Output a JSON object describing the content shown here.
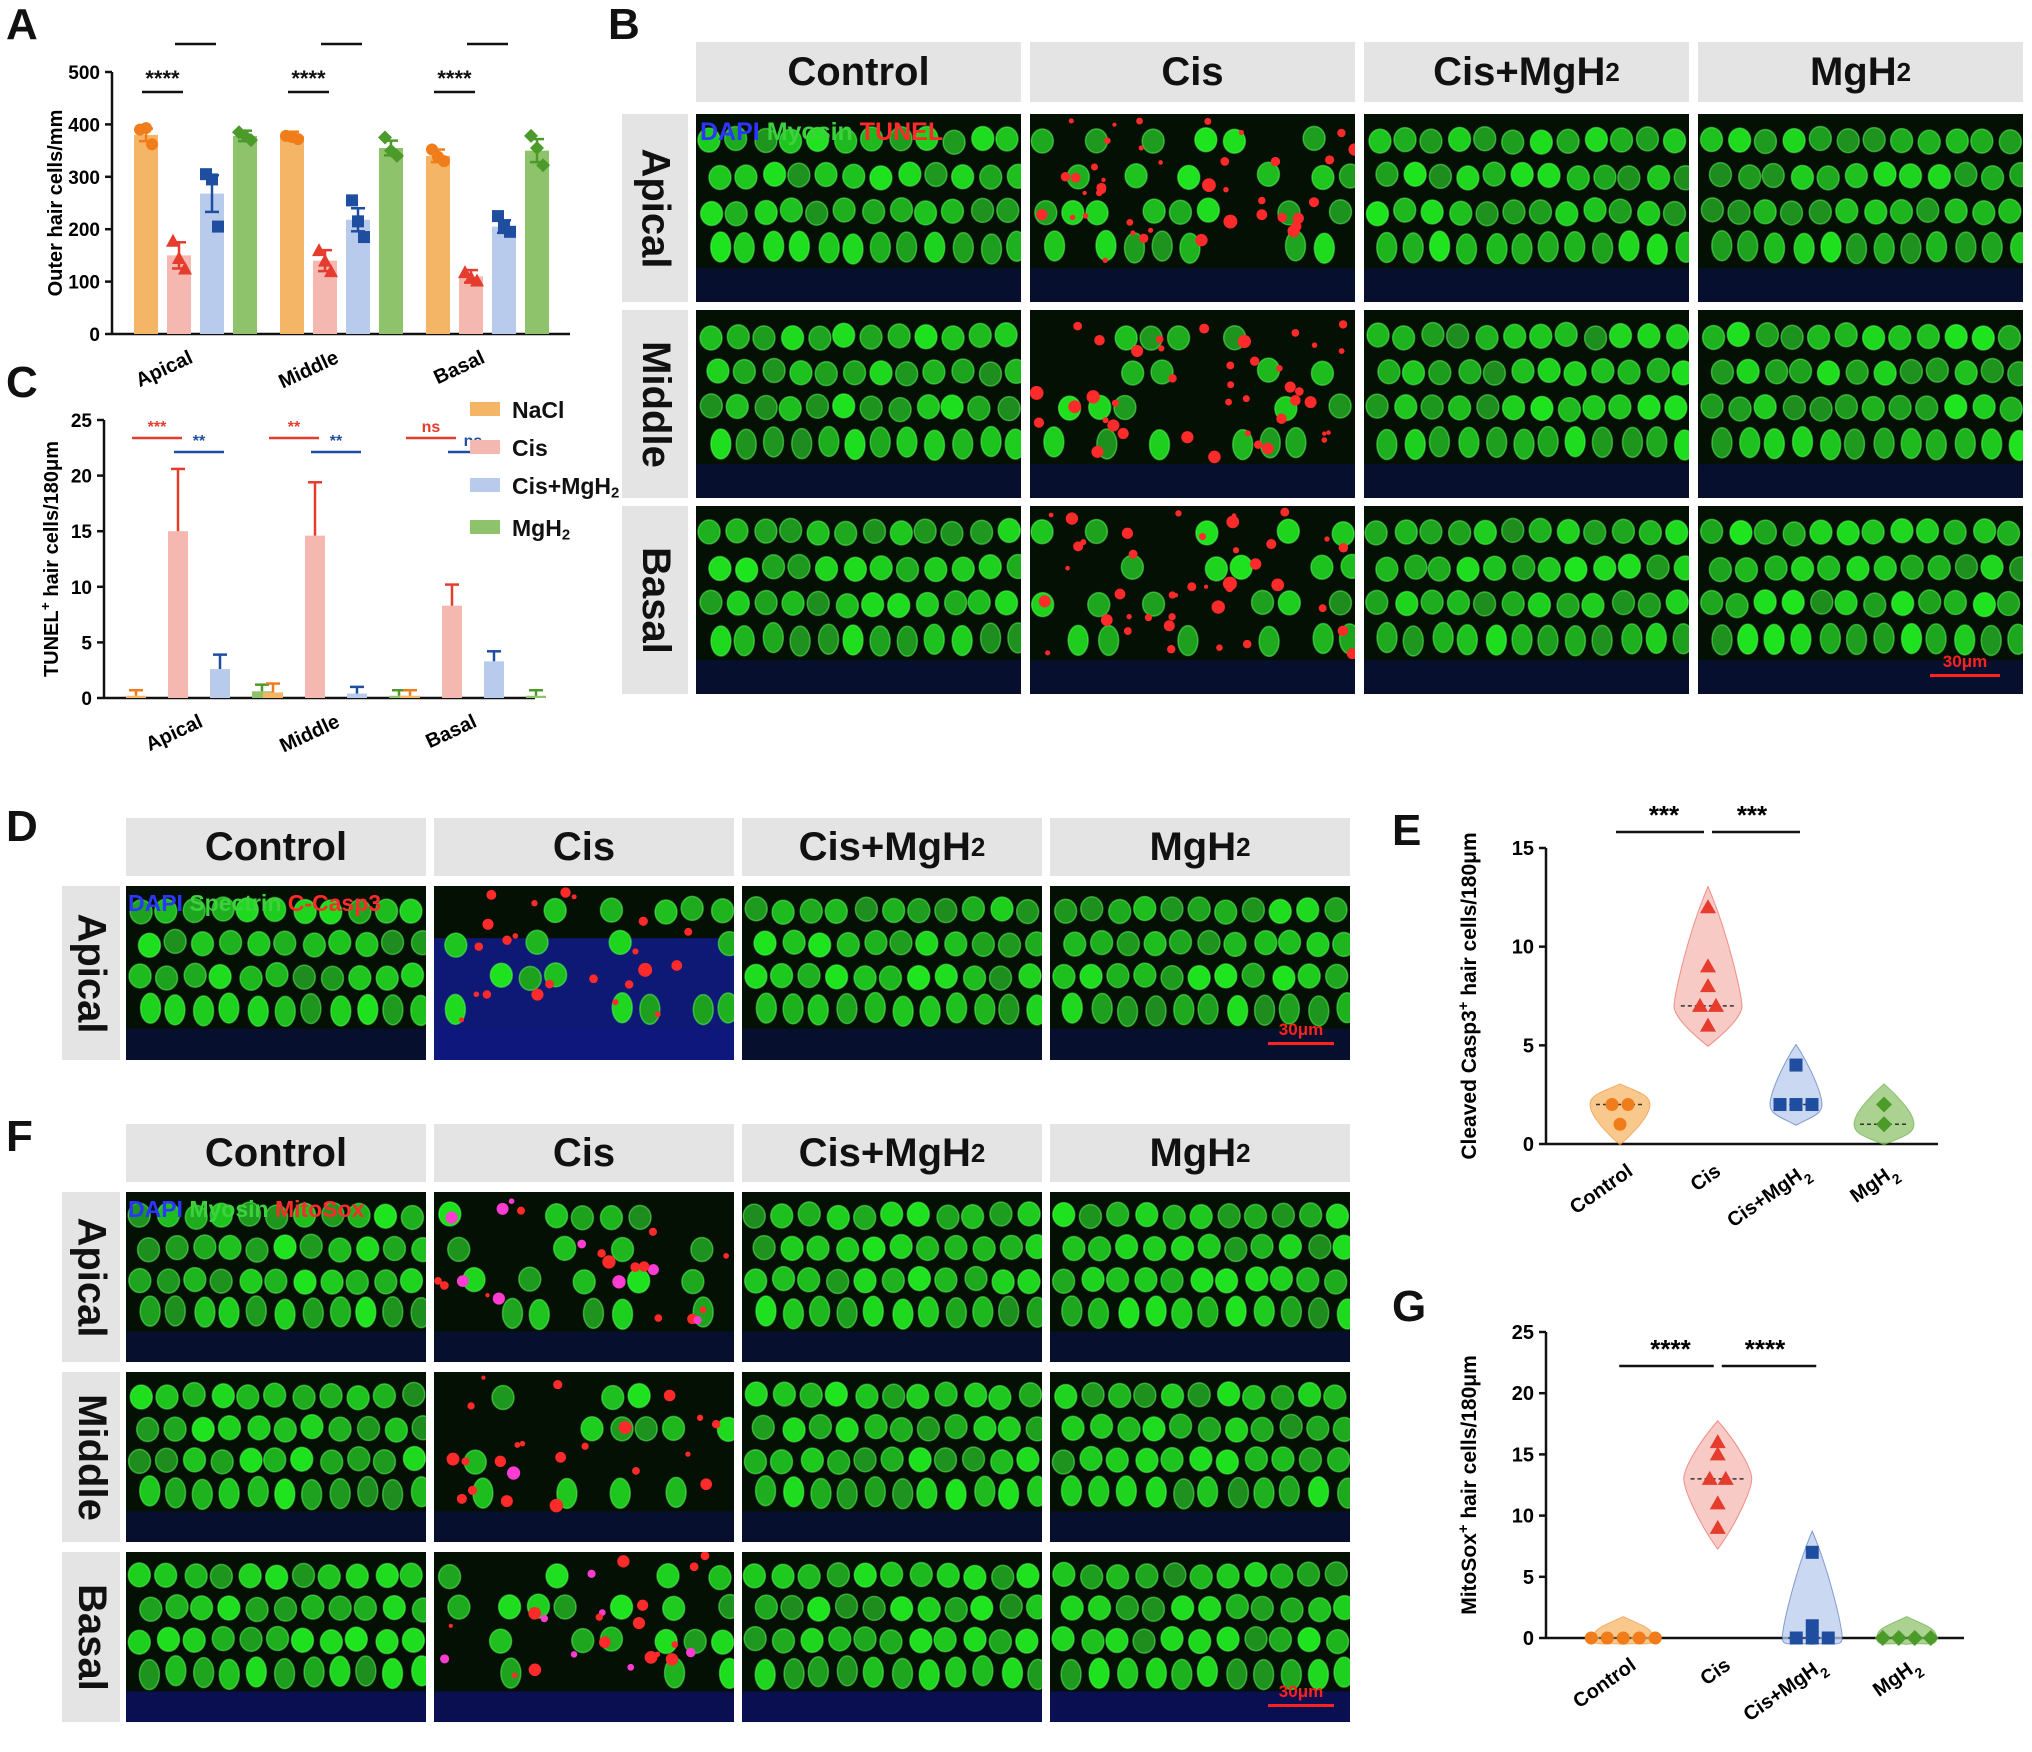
{
  "panel_letters": {
    "a": "A",
    "b": "B",
    "c": "C",
    "d": "D",
    "e": "E",
    "f": "F",
    "g": "G"
  },
  "groups": [
    "Control",
    "Cis",
    "Cis+MgH2",
    "MgH2"
  ],
  "regions": [
    "Apical",
    "Middle",
    "Basal"
  ],
  "stain_b": {
    "dapi": "DAPI",
    "marker": "Myosin",
    "signal": "TUNEL"
  },
  "stain_d": {
    "dapi": "DAPI",
    "marker": "Spectrin",
    "signal": "C-Casp3"
  },
  "stain_f": {
    "dapi": "DAPI",
    "marker": "Myosin",
    "signal": "MitoSox"
  },
  "scale_bar": "30μm",
  "legend": [
    "NaCl",
    "Cis",
    "Cis+MgH2",
    "MgH2"
  ],
  "colors": {
    "nacl": "#f5b566",
    "cis": "#f4b8b1",
    "cismgh2": "#b9cbec",
    "mgh2": "#8fc36b",
    "orange": "#f07c1a",
    "red": "#e53c2e",
    "blue": "#1f4ea1",
    "green": "#4b9a2a",
    "dapi": "#2b36ff",
    "myosin": "#3dd23d",
    "tunel": "#ff2a2a",
    "stainred": "#ff2a2a"
  },
  "chart_data": [
    {
      "panel": "A",
      "type": "bar",
      "ylabel": "Outer hair cells/mm",
      "ylim": [
        0,
        500
      ],
      "yticks": [
        "0",
        "100",
        "200",
        "300",
        "400",
        "500"
      ],
      "categories": [
        "Apical",
        "Middle",
        "Basal"
      ],
      "series": [
        {
          "name": "NaCl",
          "values": [
            380,
            378,
            340
          ],
          "err": [
            12,
            8,
            12
          ],
          "points": [
            [
              390,
              393,
              362
            ],
            [
              378,
              376,
              372
            ],
            [
              352,
              338,
              330
            ]
          ]
        },
        {
          "name": "Cis",
          "values": [
            150,
            140,
            110
          ],
          "err": [
            25,
            20,
            12
          ],
          "points": [
            [
              178,
              145,
              125
            ],
            [
              160,
              140,
              120
            ],
            [
              118,
              108,
              102
            ]
          ]
        },
        {
          "name": "Cis+MgH2",
          "values": [
            268,
            218,
            205
          ],
          "err": [
            35,
            22,
            12
          ],
          "points": [
            [
              305,
              295,
              205
            ],
            [
              255,
              215,
              185
            ],
            [
              225,
              205,
              195
            ]
          ]
        },
        {
          "name": "MgH2",
          "values": [
            378,
            355,
            350
          ],
          "err": [
            10,
            14,
            22
          ],
          "points": [
            [
              385,
              378,
              370
            ],
            [
              375,
              350,
              340
            ],
            [
              378,
              355,
              322
            ]
          ]
        }
      ],
      "significance": [
        {
          "category": "Apical",
          "pair": "NaCl-Cis",
          "label": "****"
        },
        {
          "category": "Apical",
          "pair": "Cis-Cis+MgH2",
          "label": "***"
        },
        {
          "category": "Middle",
          "pair": "NaCl-Cis",
          "label": "****"
        },
        {
          "category": "Middle",
          "pair": "Cis-Cis+MgH2",
          "label": "*"
        },
        {
          "category": "Basal",
          "pair": "NaCl-Cis",
          "label": "****"
        },
        {
          "category": "Basal",
          "pair": "Cis-Cis+MgH2",
          "label": "****"
        }
      ]
    },
    {
      "panel": "C",
      "type": "bar",
      "ylabel": "TUNEL+ hair cells/180μm",
      "ylim": [
        0,
        25
      ],
      "yticks": [
        "0",
        "5",
        "10",
        "15",
        "20",
        "25"
      ],
      "categories": [
        "Apical",
        "Middle",
        "Basal"
      ],
      "series": [
        {
          "name": "NaCl",
          "values": [
            0.2,
            0.5,
            0.2
          ],
          "err": [
            0.5,
            0.8,
            0.5
          ]
        },
        {
          "name": "Cis",
          "values": [
            15,
            14.6,
            8.3
          ],
          "err": [
            5.6,
            4.8,
            1.9
          ]
        },
        {
          "name": "Cis+MgH2",
          "values": [
            2.6,
            0.4,
            3.3
          ],
          "err": [
            1.3,
            0.6,
            0.9
          ]
        },
        {
          "name": "MgH2",
          "values": [
            0.6,
            0.2,
            0.2
          ],
          "err": [
            0.6,
            0.5,
            0.5
          ]
        }
      ],
      "significance": [
        {
          "category": "Apical",
          "pair": "NaCl-Cis",
          "label": "***",
          "color": "red"
        },
        {
          "category": "Apical",
          "pair": "Cis-Cis+MgH2",
          "label": "**",
          "color": "blue"
        },
        {
          "category": "Middle",
          "pair": "NaCl-Cis",
          "label": "**",
          "color": "red"
        },
        {
          "category": "Middle",
          "pair": "Cis-Cis+MgH2",
          "label": "**",
          "color": "blue"
        },
        {
          "category": "Basal",
          "pair": "NaCl-Cis",
          "label": "ns",
          "color": "red"
        },
        {
          "category": "Basal",
          "pair": "Cis-Cis+MgH2",
          "label": "ns",
          "color": "blue"
        }
      ]
    },
    {
      "panel": "E",
      "type": "scatter",
      "ylabel": "Cleaved Casp3+ hair cells/180μm",
      "ylim": [
        0,
        15
      ],
      "yticks": [
        "0",
        "5",
        "10",
        "15"
      ],
      "categories": [
        "Control",
        "Cis",
        "Cis+MgH2",
        "MgH2"
      ],
      "series": [
        {
          "name": "Control",
          "marker": "circle",
          "points": [
            2,
            2,
            1
          ],
          "median": 2
        },
        {
          "name": "Cis",
          "marker": "triangle",
          "points": [
            12,
            9,
            8,
            7,
            7,
            6
          ],
          "median": 7
        },
        {
          "name": "Cis+MgH2",
          "marker": "square",
          "points": [
            4,
            2,
            2,
            2
          ],
          "median": 2
        },
        {
          "name": "MgH2",
          "marker": "diamond",
          "points": [
            2,
            1
          ],
          "median": 1
        }
      ],
      "significance": [
        {
          "pair": "Control-Cis",
          "label": "***"
        },
        {
          "pair": "Cis-Cis+MgH2",
          "label": "***"
        }
      ]
    },
    {
      "panel": "G",
      "type": "scatter",
      "ylabel": "MitoSox+ hair cells/180μm",
      "ylim": [
        0,
        25
      ],
      "yticks": [
        "0",
        "5",
        "10",
        "15",
        "20",
        "25"
      ],
      "categories": [
        "Control",
        "Cis",
        "Cis+MgH2",
        "MgH2"
      ],
      "series": [
        {
          "name": "Control",
          "marker": "circle",
          "points": [
            0,
            0,
            0,
            0,
            0
          ],
          "median": 0
        },
        {
          "name": "Cis",
          "marker": "triangle",
          "points": [
            16,
            15,
            13,
            13,
            11,
            9
          ],
          "median": 13
        },
        {
          "name": "Cis+MgH2",
          "marker": "square",
          "points": [
            7,
            1,
            0,
            0,
            0
          ],
          "median": 0
        },
        {
          "name": "MgH2",
          "marker": "diamond",
          "points": [
            0,
            0,
            0,
            0
          ],
          "median": 0
        }
      ],
      "significance": [
        {
          "pair": "Control-Cis",
          "label": "****"
        },
        {
          "pair": "Cis-Cis+MgH2",
          "label": "****"
        }
      ]
    }
  ]
}
